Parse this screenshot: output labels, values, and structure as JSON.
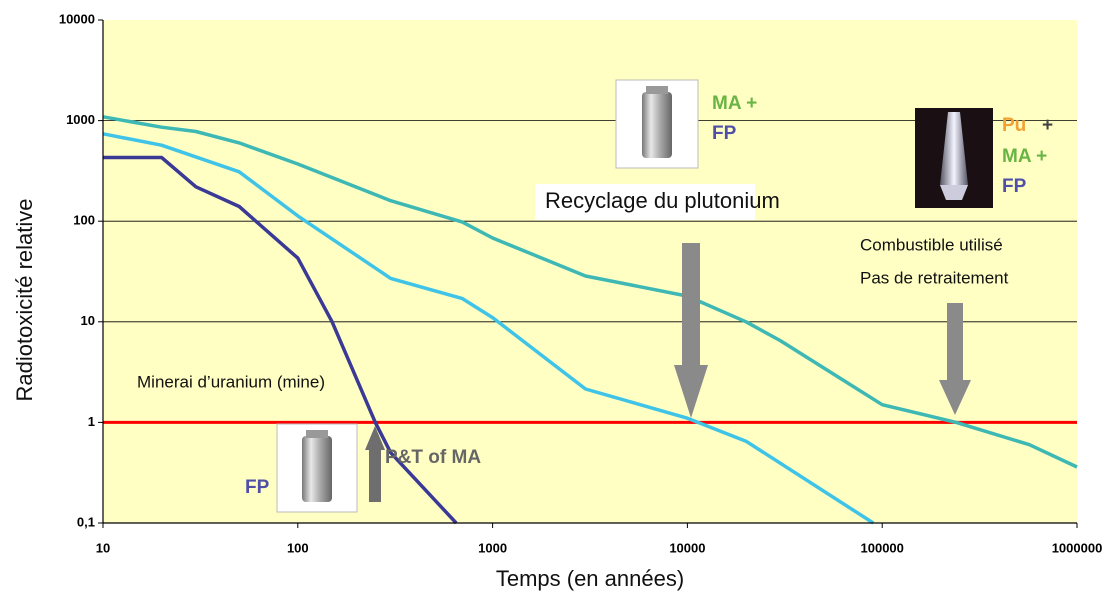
{
  "chart_data": {
    "type": "line",
    "y_label": "Radiotoxicité relative",
    "x_label": "Temps (en années)",
    "log_x": true,
    "log_y": true,
    "grid": true,
    "xlim": [
      10,
      1000000
    ],
    "xticks": [
      10,
      100,
      1000,
      10000,
      100000,
      1000000
    ],
    "ylim": [
      0.1,
      10000
    ],
    "yticks": [
      {
        "value": 0.1,
        "label": "0,1"
      },
      1,
      10,
      100,
      1000,
      10000
    ],
    "reference_line": {
      "value": 1,
      "color": "#ff0000"
    },
    "series": [
      {
        "color": "#3a3a96",
        "x": [
          10,
          20,
          30,
          50,
          100,
          150,
          250,
          300,
          650
        ],
        "values": [
          430,
          430,
          220,
          140,
          43,
          10,
          1,
          0.5,
          0.1
        ]
      },
      {
        "color": "#3fc4e8",
        "x": [
          10,
          20,
          50,
          100,
          300,
          700,
          1000,
          3000,
          10000,
          20000,
          90000
        ],
        "values": [
          740,
          570,
          310,
          113,
          27,
          17,
          11,
          2.15,
          1.1,
          0.65,
          0.1
        ]
      },
      {
        "color": "#3db8b4",
        "x": [
          10,
          20,
          30,
          50,
          100,
          300,
          700,
          1000,
          3000,
          10000,
          20000,
          30000,
          100000,
          240000,
          570000,
          1000000
        ],
        "values": [
          1090,
          860,
          780,
          600,
          370,
          160,
          98,
          68,
          28.5,
          18,
          10,
          6.5,
          1.5,
          1,
          0.6,
          0.36
        ]
      }
    ],
    "annotations": [
      "Minerai d’uranium (mine)",
      "Recyclage du plutonium",
      "Combustible utilisé",
      "Pas de retraitement",
      "P&T of MA",
      "FP",
      "MA +",
      "FP",
      "Pu",
      "+",
      "MA +",
      "FP"
    ]
  }
}
